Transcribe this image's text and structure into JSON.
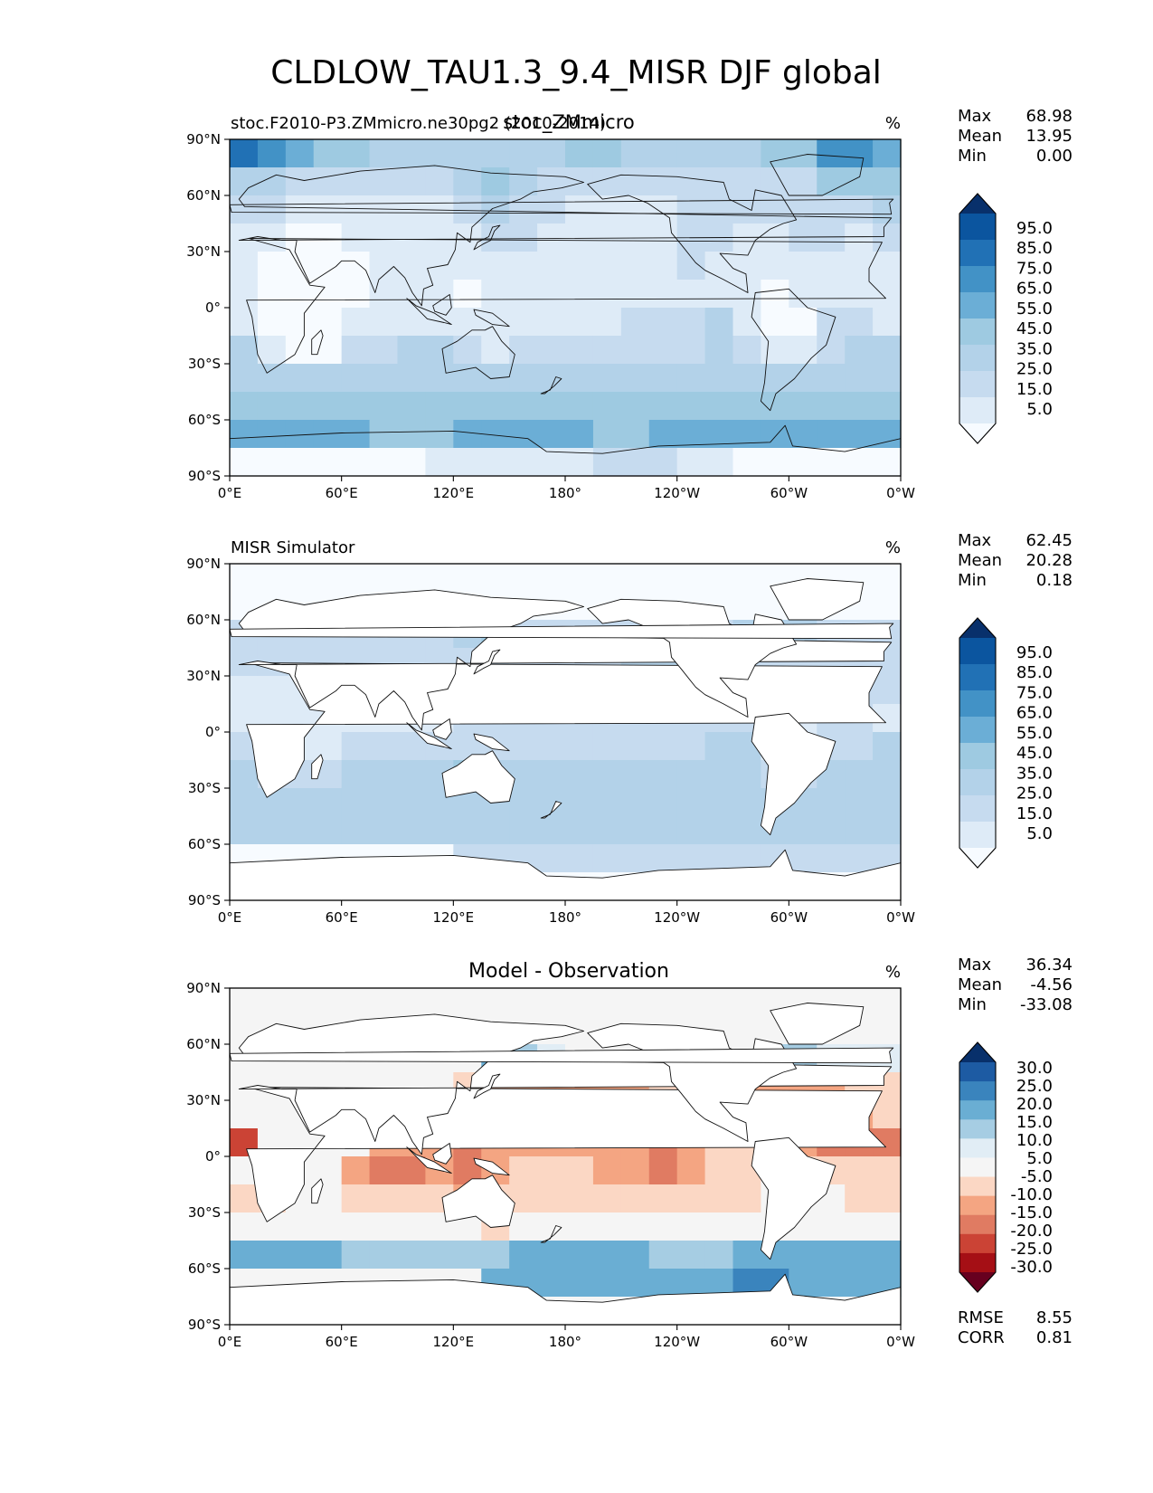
{
  "figure": {
    "title": "CLDLOW_TAU1.3_9.4_MISR DJF global"
  },
  "axes": {
    "lat_ticks": [
      "90°N",
      "60°N",
      "30°N",
      "0°",
      "30°S",
      "60°S",
      "90°S"
    ],
    "lon_ticks": [
      "0°E",
      "60°E",
      "120°E",
      "180°",
      "120°W",
      "60°W",
      "0°W"
    ]
  },
  "colors": {
    "blue_scale": [
      "#f7fbff",
      "#deebf7",
      "#c6dbef",
      "#b3d2e9",
      "#9ecae1",
      "#6baed6",
      "#4292c6",
      "#2171b5",
      "#0b559f",
      "#08306b"
    ],
    "diff_scale": [
      "#67001f",
      "#a50f15",
      "#cb4335",
      "#e07b62",
      "#f4a582",
      "#fbd7c4",
      "#f5f5f5",
      "#e1edf5",
      "#a6cde3",
      "#6aaed3",
      "#3a84bd",
      "#1d5ba3",
      "#08306b"
    ]
  },
  "chart_data": [
    {
      "type": "heatmap",
      "left_title": "stoc.F2010-P3.ZMmicro.ne30pg2 (2010-2014)",
      "center_title": "stoc_ZMmicro",
      "units": "%",
      "stats": {
        "max_label": "Max",
        "max": "68.98",
        "mean_label": "Mean",
        "mean": "13.95",
        "min_label": "Min",
        "min": "0.00"
      },
      "colorbar_levels": [
        "95.0",
        "85.0",
        "75.0",
        "65.0",
        "55.0",
        "45.0",
        "35.0",
        "25.0",
        "15.0",
        "5.0"
      ],
      "scale": "blue",
      "field": [
        [
          7,
          6,
          5,
          4,
          4,
          3,
          3,
          3,
          3,
          3,
          3,
          3,
          4,
          4,
          3,
          3,
          3,
          3,
          3,
          4,
          4,
          6,
          6,
          5
        ],
        [
          3,
          3,
          2,
          2,
          2,
          2,
          2,
          2,
          3,
          4,
          3,
          2,
          2,
          2,
          2,
          2,
          2,
          2,
          2,
          2,
          2,
          4,
          4,
          4
        ],
        [
          2,
          2,
          1,
          1,
          1,
          1,
          1,
          1,
          2,
          3,
          2,
          2,
          1,
          1,
          1,
          1,
          2,
          2,
          2,
          2,
          2,
          2,
          2,
          3
        ],
        [
          1,
          1,
          0,
          0,
          1,
          1,
          1,
          1,
          1,
          2,
          2,
          1,
          1,
          1,
          1,
          1,
          2,
          2,
          1,
          1,
          2,
          2,
          1,
          2
        ],
        [
          1,
          0,
          0,
          0,
          0,
          1,
          1,
          1,
          1,
          1,
          1,
          1,
          1,
          1,
          1,
          1,
          2,
          1,
          1,
          1,
          1,
          1,
          1,
          1
        ],
        [
          1,
          0,
          0,
          0,
          0,
          1,
          1,
          1,
          0,
          1,
          1,
          1,
          1,
          1,
          1,
          1,
          1,
          1,
          1,
          0,
          1,
          1,
          1,
          1
        ],
        [
          1,
          0,
          0,
          0,
          1,
          1,
          1,
          1,
          1,
          1,
          1,
          1,
          1,
          1,
          2,
          2,
          2,
          3,
          1,
          0,
          0,
          2,
          2,
          1
        ],
        [
          3,
          1,
          0,
          0,
          2,
          2,
          3,
          3,
          2,
          1,
          2,
          2,
          2,
          2,
          2,
          2,
          2,
          3,
          2,
          1,
          1,
          2,
          3,
          3
        ],
        [
          3,
          3,
          3,
          3,
          3,
          3,
          3,
          3,
          3,
          3,
          3,
          3,
          3,
          3,
          3,
          3,
          3,
          3,
          3,
          3,
          3,
          3,
          3,
          3
        ],
        [
          4,
          4,
          4,
          4,
          4,
          4,
          4,
          4,
          4,
          4,
          4,
          4,
          4,
          4,
          4,
          4,
          4,
          4,
          4,
          4,
          4,
          4,
          4,
          4
        ],
        [
          5,
          5,
          5,
          5,
          5,
          4,
          4,
          4,
          5,
          5,
          5,
          5,
          5,
          4,
          4,
          5,
          5,
          5,
          5,
          5,
          5,
          5,
          5,
          5
        ],
        [
          0,
          0,
          0,
          0,
          0,
          0,
          0,
          1,
          1,
          1,
          1,
          1,
          1,
          2,
          2,
          2,
          1,
          1,
          0,
          0,
          0,
          0,
          0,
          0
        ]
      ]
    },
    {
      "type": "heatmap",
      "left_title": "MISR Simulator",
      "center_title": "",
      "units": "%",
      "stats": {
        "max_label": "Max",
        "max": "62.45",
        "mean_label": "Mean",
        "mean": "20.28",
        "min_label": "Min",
        "min": "0.18"
      },
      "colorbar_levels": [
        "95.0",
        "85.0",
        "75.0",
        "65.0",
        "55.0",
        "45.0",
        "35.0",
        "25.0",
        "15.0",
        "5.0"
      ],
      "scale": "blue",
      "field": [
        [
          0,
          0,
          0,
          0,
          0,
          0,
          0,
          0,
          0,
          0,
          0,
          0,
          0,
          0,
          0,
          0,
          0,
          0,
          0,
          0,
          0,
          0,
          0,
          0
        ],
        [
          0,
          0,
          0,
          0,
          0,
          0,
          0,
          0,
          0,
          0,
          0,
          0,
          0,
          0,
          0,
          0,
          0,
          0,
          0,
          0,
          0,
          0,
          0,
          0
        ],
        [
          2,
          2,
          2,
          2,
          2,
          2,
          2,
          2,
          3,
          4,
          2,
          2,
          2,
          2,
          2,
          2,
          2,
          2,
          3,
          3,
          3,
          2,
          2,
          2
        ],
        [
          2,
          2,
          2,
          2,
          2,
          2,
          2,
          2,
          2,
          3,
          2,
          2,
          2,
          2,
          3,
          3,
          2,
          2,
          2,
          2,
          2,
          2,
          2,
          2
        ],
        [
          1,
          1,
          1,
          1,
          1,
          1,
          1,
          1,
          2,
          2,
          2,
          2,
          2,
          2,
          2,
          2,
          2,
          2,
          2,
          2,
          2,
          2,
          2,
          2
        ],
        [
          1,
          1,
          1,
          1,
          1,
          1,
          1,
          1,
          2,
          2,
          2,
          2,
          2,
          2,
          2,
          2,
          2,
          2,
          2,
          1,
          1,
          2,
          2,
          1
        ],
        [
          2,
          1,
          1,
          1,
          2,
          2,
          2,
          2,
          2,
          2,
          2,
          2,
          2,
          2,
          2,
          2,
          2,
          3,
          3,
          1,
          1,
          2,
          2,
          3
        ],
        [
          3,
          2,
          2,
          2,
          3,
          3,
          3,
          3,
          4,
          3,
          3,
          3,
          3,
          3,
          3,
          3,
          3,
          3,
          3,
          2,
          2,
          3,
          3,
          3
        ],
        [
          3,
          3,
          3,
          3,
          3,
          3,
          3,
          3,
          3,
          3,
          3,
          3,
          3,
          3,
          3,
          3,
          3,
          3,
          3,
          3,
          3,
          3,
          3,
          3
        ],
        [
          3,
          3,
          3,
          3,
          3,
          3,
          3,
          3,
          3,
          3,
          3,
          3,
          3,
          3,
          3,
          3,
          3,
          3,
          3,
          3,
          3,
          3,
          3,
          3
        ],
        [
          0,
          0,
          0,
          0,
          0,
          0,
          0,
          0,
          2,
          2,
          2,
          2,
          2,
          2,
          2,
          2,
          2,
          2,
          2,
          2,
          2,
          2,
          2,
          2
        ],
        [
          0,
          0,
          0,
          0,
          0,
          0,
          0,
          0,
          0,
          0,
          0,
          0,
          0,
          0,
          0,
          0,
          0,
          0,
          0,
          0,
          0,
          0,
          0,
          0
        ]
      ]
    },
    {
      "type": "heatmap",
      "left_title": "",
      "center_title": "Model - Observation",
      "units": "%",
      "stats": {
        "max_label": "Max",
        "max": "36.34",
        "mean_label": "Mean",
        "mean": "-4.56",
        "min_label": "Min",
        "min": "-33.08"
      },
      "colorbar_levels": [
        "30.0",
        "25.0",
        "20.0",
        "15.0",
        "10.0",
        "5.0",
        "-5.0",
        "-10.0",
        "-15.0",
        "-20.0",
        "-25.0",
        "-30.0"
      ],
      "scale": "diff",
      "metrics": {
        "rmse_label": "RMSE",
        "rmse": "8.55",
        "corr_label": "CORR",
        "corr": "0.81"
      },
      "field": [
        [
          6,
          6,
          6,
          6,
          6,
          6,
          6,
          6,
          6,
          6,
          6,
          6,
          6,
          6,
          6,
          6,
          6,
          6,
          6,
          6,
          6,
          6,
          6,
          6
        ],
        [
          6,
          6,
          6,
          6,
          6,
          6,
          6,
          6,
          6,
          6,
          6,
          6,
          6,
          6,
          6,
          6,
          6,
          6,
          6,
          6,
          6,
          6,
          6,
          6
        ],
        [
          6,
          6,
          6,
          6,
          6,
          6,
          6,
          6,
          6,
          9,
          8,
          7,
          6,
          6,
          6,
          6,
          6,
          6,
          6,
          8,
          8,
          7,
          7,
          7
        ],
        [
          6,
          6,
          6,
          6,
          6,
          6,
          6,
          6,
          5,
          4,
          4,
          4,
          4,
          4,
          4,
          5,
          5,
          6,
          4,
          4,
          4,
          4,
          5,
          5
        ],
        [
          6,
          6,
          6,
          6,
          6,
          6,
          6,
          4,
          3,
          3,
          4,
          4,
          4,
          4,
          4,
          4,
          5,
          5,
          5,
          4,
          4,
          4,
          4,
          5
        ],
        [
          2,
          6,
          6,
          6,
          6,
          4,
          4,
          4,
          3,
          4,
          4,
          4,
          4,
          4,
          4,
          3,
          4,
          5,
          5,
          6,
          4,
          3,
          3,
          3
        ],
        [
          6,
          6,
          6,
          6,
          4,
          3,
          3,
          4,
          3,
          4,
          5,
          5,
          5,
          4,
          4,
          3,
          4,
          5,
          5,
          6,
          5,
          5,
          5,
          5
        ],
        [
          5,
          5,
          6,
          6,
          5,
          5,
          5,
          5,
          4,
          5,
          5,
          5,
          5,
          5,
          5,
          5,
          5,
          5,
          5,
          6,
          6,
          6,
          5,
          5
        ],
        [
          6,
          6,
          6,
          6,
          6,
          6,
          6,
          6,
          6,
          5,
          6,
          6,
          6,
          6,
          6,
          6,
          6,
          6,
          6,
          6,
          6,
          6,
          6,
          6
        ],
        [
          9,
          9,
          9,
          9,
          8,
          8,
          8,
          8,
          8,
          8,
          9,
          9,
          9,
          9,
          9,
          8,
          8,
          8,
          9,
          9,
          9,
          9,
          9,
          9
        ],
        [
          6,
          6,
          6,
          6,
          6,
          6,
          6,
          6,
          6,
          9,
          9,
          9,
          9,
          9,
          9,
          9,
          9,
          9,
          10,
          10,
          9,
          9,
          9,
          9
        ],
        [
          6,
          6,
          6,
          6,
          6,
          6,
          6,
          6,
          6,
          6,
          6,
          6,
          6,
          6,
          6,
          6,
          6,
          6,
          6,
          6,
          6,
          6,
          6,
          6
        ]
      ]
    }
  ]
}
